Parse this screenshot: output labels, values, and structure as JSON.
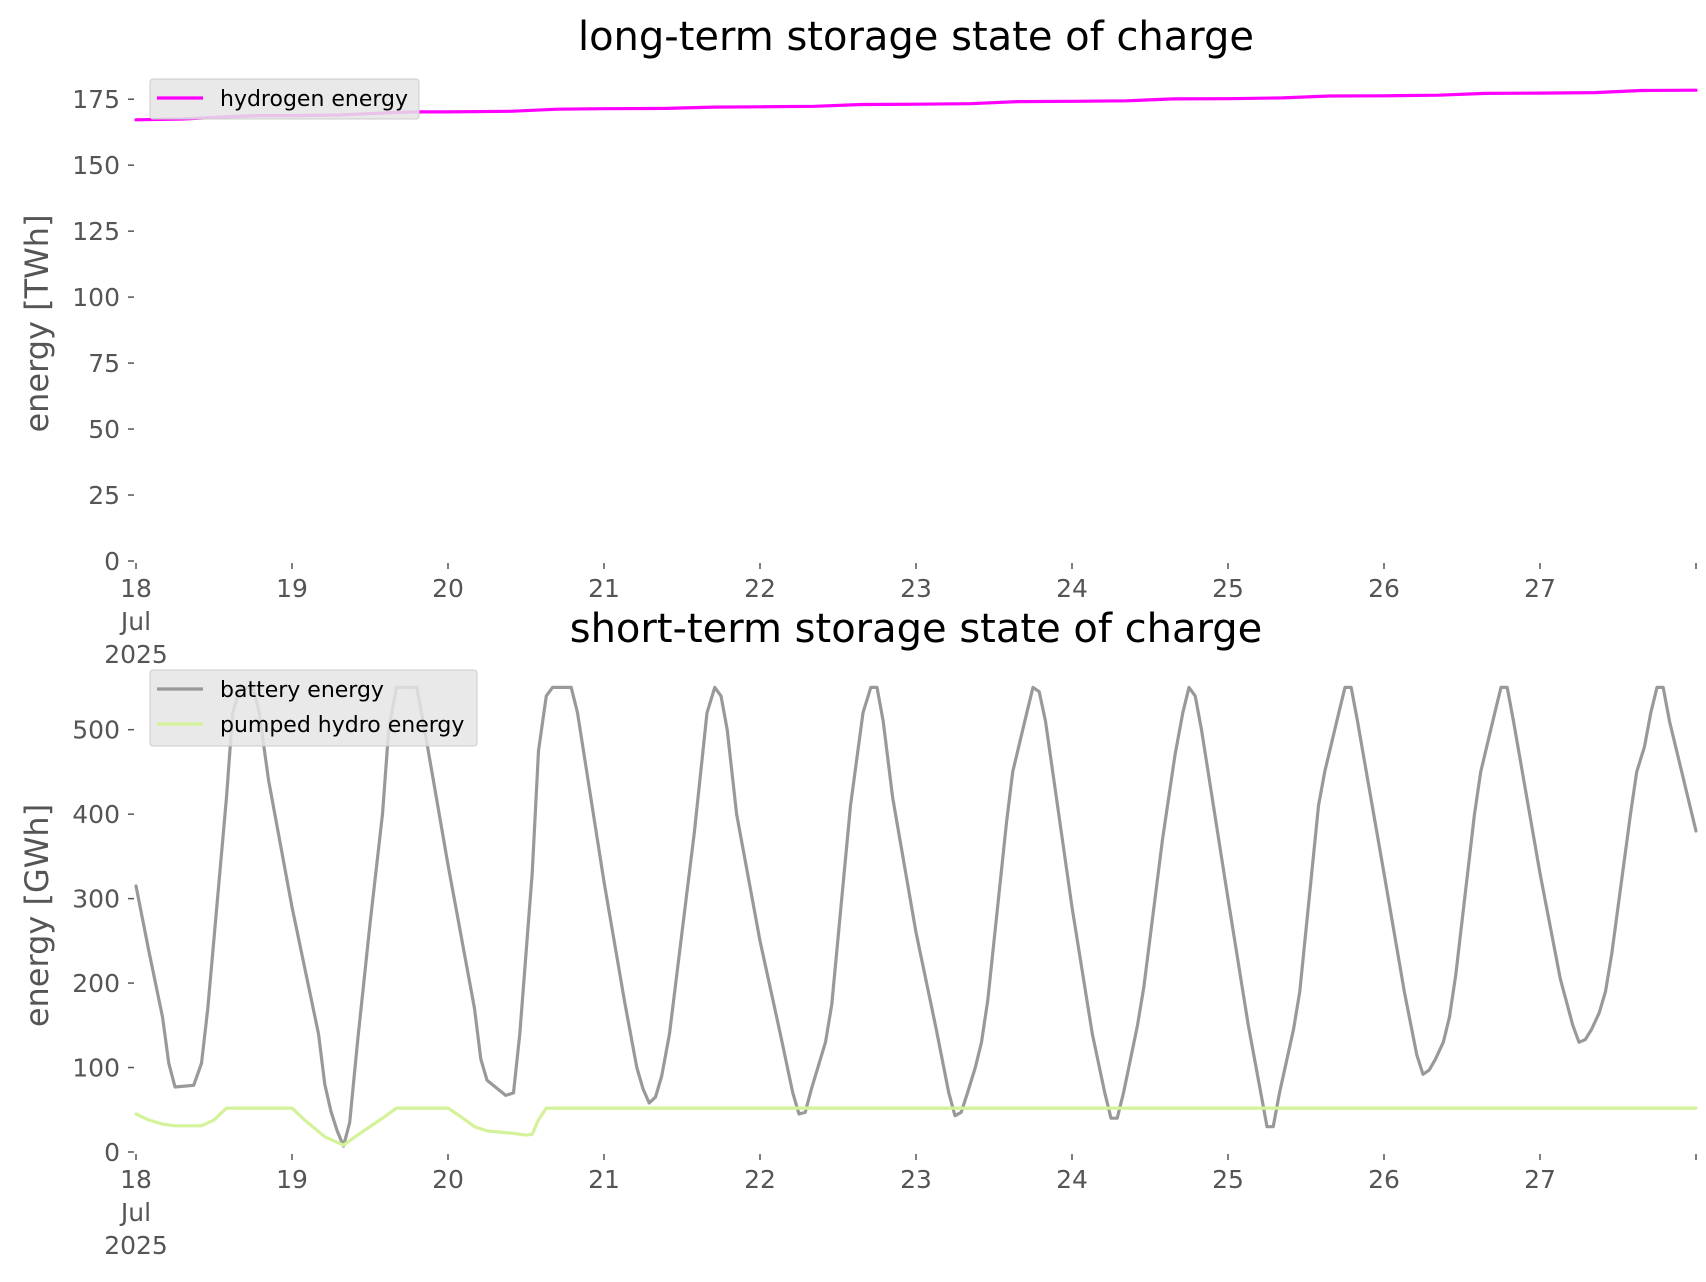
{
  "chart_data": [
    {
      "type": "line",
      "title": "long-term storage state of charge",
      "ylabel": "energy [TWh]",
      "xlabel": "",
      "ylim": [
        0,
        180
      ],
      "yticks": [
        0,
        25,
        50,
        75,
        100,
        125,
        150,
        175
      ],
      "xlim": [
        0,
        10
      ],
      "xticks": [
        {
          "x": 0,
          "lines": [
            "18",
            "Jul",
            "2025"
          ]
        },
        {
          "x": 1,
          "lines": [
            "19"
          ]
        },
        {
          "x": 2,
          "lines": [
            "20"
          ]
        },
        {
          "x": 3,
          "lines": [
            "21"
          ]
        },
        {
          "x": 4,
          "lines": [
            "22"
          ]
        },
        {
          "x": 5,
          "lines": [
            "23"
          ]
        },
        {
          "x": 6,
          "lines": [
            "24"
          ]
        },
        {
          "x": 7,
          "lines": [
            "25"
          ]
        },
        {
          "x": 8,
          "lines": [
            "26"
          ]
        },
        {
          "x": 9,
          "lines": [
            "27"
          ]
        },
        {
          "x": 10,
          "lines": [
            ""
          ]
        }
      ],
      "grid": false,
      "legend": "top-left",
      "series": [
        {
          "name": "hydrogen energy",
          "color": "#ff00ff",
          "points": [
            [
              0,
              167.2
            ],
            [
              0.3,
              167.5
            ],
            [
              0.6,
              168.4
            ],
            [
              0.8,
              168.8
            ],
            [
              1.0,
              168.8
            ],
            [
              1.3,
              169.0
            ],
            [
              1.6,
              169.8
            ],
            [
              1.8,
              170.2
            ],
            [
              2.0,
              170.2
            ],
            [
              2.4,
              170.4
            ],
            [
              2.7,
              171.2
            ],
            [
              3.0,
              171.4
            ],
            [
              3.4,
              171.5
            ],
            [
              3.7,
              172.0
            ],
            [
              4.0,
              172.1
            ],
            [
              4.35,
              172.3
            ],
            [
              4.65,
              173.0
            ],
            [
              5.0,
              173.1
            ],
            [
              5.35,
              173.3
            ],
            [
              5.65,
              174.1
            ],
            [
              6.0,
              174.2
            ],
            [
              6.35,
              174.4
            ],
            [
              6.65,
              175.1
            ],
            [
              7.0,
              175.2
            ],
            [
              7.35,
              175.5
            ],
            [
              7.65,
              176.2
            ],
            [
              8.0,
              176.3
            ],
            [
              8.35,
              176.5
            ],
            [
              8.65,
              177.2
            ],
            [
              9.0,
              177.3
            ],
            [
              9.35,
              177.5
            ],
            [
              9.65,
              178.3
            ],
            [
              10,
              178.4
            ]
          ]
        }
      ]
    },
    {
      "type": "line",
      "title": "short-term storage state of charge",
      "ylabel": "energy [GWh]",
      "xlabel": "",
      "ylim": [
        0,
        560
      ],
      "yticks": [
        0,
        100,
        200,
        300,
        400,
        500
      ],
      "xlim": [
        0,
        10
      ],
      "xticks": [
        {
          "x": 0,
          "lines": [
            "18",
            "Jul",
            "2025"
          ]
        },
        {
          "x": 1,
          "lines": [
            "19"
          ]
        },
        {
          "x": 2,
          "lines": [
            "20"
          ]
        },
        {
          "x": 3,
          "lines": [
            "21"
          ]
        },
        {
          "x": 4,
          "lines": [
            "22"
          ]
        },
        {
          "x": 5,
          "lines": [
            "23"
          ]
        },
        {
          "x": 6,
          "lines": [
            "24"
          ]
        },
        {
          "x": 7,
          "lines": [
            "25"
          ]
        },
        {
          "x": 8,
          "lines": [
            "26"
          ]
        },
        {
          "x": 9,
          "lines": [
            "27"
          ]
        },
        {
          "x": 10,
          "lines": [
            ""
          ]
        }
      ],
      "grid": false,
      "legend": "top-left",
      "series": [
        {
          "name": "battery energy",
          "color": "#999999",
          "points": [
            [
              0,
              315
            ],
            [
              0.08,
              240
            ],
            [
              0.17,
              160
            ],
            [
              0.21,
              105
            ],
            [
              0.25,
              77
            ],
            [
              0.37,
              79
            ],
            [
              0.42,
              105
            ],
            [
              0.46,
              170
            ],
            [
              0.58,
              420
            ],
            [
              0.62,
              520
            ],
            [
              0.67,
              550
            ],
            [
              0.75,
              550
            ],
            [
              0.79,
              520
            ],
            [
              0.85,
              440
            ],
            [
              1.0,
              290
            ],
            [
              1.17,
              140
            ],
            [
              1.21,
              80
            ],
            [
              1.25,
              48
            ],
            [
              1.29,
              25
            ],
            [
              1.33,
              7
            ],
            [
              1.37,
              35
            ],
            [
              1.42,
              130
            ],
            [
              1.5,
              270
            ],
            [
              1.58,
              400
            ],
            [
              1.62,
              500
            ],
            [
              1.67,
              550
            ],
            [
              1.8,
              550
            ],
            [
              1.85,
              500
            ],
            [
              2.0,
              340
            ],
            [
              2.17,
              170
            ],
            [
              2.21,
              110
            ],
            [
              2.25,
              85
            ],
            [
              2.37,
              67
            ],
            [
              2.42,
              70
            ],
            [
              2.46,
              140
            ],
            [
              2.54,
              330
            ],
            [
              2.58,
              475
            ],
            [
              2.63,
              540
            ],
            [
              2.67,
              550
            ],
            [
              2.79,
              550
            ],
            [
              2.83,
              520
            ],
            [
              3.0,
              320
            ],
            [
              3.13,
              180
            ],
            [
              3.21,
              100
            ],
            [
              3.25,
              75
            ],
            [
              3.29,
              58
            ],
            [
              3.33,
              65
            ],
            [
              3.37,
              90
            ],
            [
              3.42,
              140
            ],
            [
              3.58,
              380
            ],
            [
              3.66,
              520
            ],
            [
              3.71,
              550
            ],
            [
              3.75,
              540
            ],
            [
              3.79,
              500
            ],
            [
              3.85,
              400
            ],
            [
              4.0,
              250
            ],
            [
              4.13,
              140
            ],
            [
              4.21,
              70
            ],
            [
              4.25,
              45
            ],
            [
              4.29,
              47
            ],
            [
              4.33,
              75
            ],
            [
              4.42,
              130
            ],
            [
              4.46,
              175
            ],
            [
              4.58,
              410
            ],
            [
              4.66,
              520
            ],
            [
              4.71,
              550
            ],
            [
              4.75,
              550
            ],
            [
              4.79,
              510
            ],
            [
              4.85,
              420
            ],
            [
              5.0,
              260
            ],
            [
              5.13,
              145
            ],
            [
              5.21,
              70
            ],
            [
              5.25,
              43
            ],
            [
              5.29,
              47
            ],
            [
              5.33,
              70
            ],
            [
              5.38,
              100
            ],
            [
              5.42,
              130
            ],
            [
              5.46,
              180
            ],
            [
              5.58,
              390
            ],
            [
              5.62,
              450
            ],
            [
              5.71,
              520
            ],
            [
              5.75,
              550
            ],
            [
              5.79,
              545
            ],
            [
              5.83,
              510
            ],
            [
              6.0,
              290
            ],
            [
              6.13,
              140
            ],
            [
              6.21,
              70
            ],
            [
              6.25,
              40
            ],
            [
              6.29,
              40
            ],
            [
              6.33,
              70
            ],
            [
              6.42,
              150
            ],
            [
              6.46,
              195
            ],
            [
              6.58,
              370
            ],
            [
              6.66,
              470
            ],
            [
              6.71,
              520
            ],
            [
              6.75,
              550
            ],
            [
              6.79,
              540
            ],
            [
              6.83,
              500
            ],
            [
              7.0,
              300
            ],
            [
              7.13,
              150
            ],
            [
              7.21,
              70
            ],
            [
              7.25,
              30
            ],
            [
              7.29,
              30
            ],
            [
              7.33,
              70
            ],
            [
              7.42,
              145
            ],
            [
              7.46,
              190
            ],
            [
              7.58,
              410
            ],
            [
              7.62,
              450
            ],
            [
              7.71,
              520
            ],
            [
              7.75,
              550
            ],
            [
              7.79,
              550
            ],
            [
              7.83,
              510
            ],
            [
              8.0,
              330
            ],
            [
              8.13,
              190
            ],
            [
              8.21,
              115
            ],
            [
              8.25,
              92
            ],
            [
              8.29,
              97
            ],
            [
              8.33,
              110
            ],
            [
              8.38,
              130
            ],
            [
              8.42,
              160
            ],
            [
              8.46,
              210
            ],
            [
              8.58,
              400
            ],
            [
              8.62,
              450
            ],
            [
              8.71,
              520
            ],
            [
              8.75,
              550
            ],
            [
              8.79,
              550
            ],
            [
              8.83,
              510
            ],
            [
              9.0,
              330
            ],
            [
              9.13,
              205
            ],
            [
              9.21,
              150
            ],
            [
              9.25,
              130
            ],
            [
              9.29,
              133
            ],
            [
              9.33,
              145
            ],
            [
              9.38,
              165
            ],
            [
              9.42,
              190
            ],
            [
              9.46,
              235
            ],
            [
              9.58,
              400
            ],
            [
              9.62,
              450
            ],
            [
              9.67,
              480
            ],
            [
              9.71,
              520
            ],
            [
              9.75,
              550
            ],
            [
              9.79,
              550
            ],
            [
              9.83,
              510
            ],
            [
              10,
              380
            ]
          ]
        },
        {
          "name": "pumped hydro energy",
          "color": "#d4f299",
          "points": [
            [
              0,
              45
            ],
            [
              0.08,
              38
            ],
            [
              0.17,
              33
            ],
            [
              0.25,
              31
            ],
            [
              0.42,
              31
            ],
            [
              0.5,
              38
            ],
            [
              0.58,
              52
            ],
            [
              0.67,
              52
            ],
            [
              1.0,
              52
            ],
            [
              1.08,
              38
            ],
            [
              1.21,
              18
            ],
            [
              1.33,
              8
            ],
            [
              1.42,
              20
            ],
            [
              1.58,
              40
            ],
            [
              1.67,
              52
            ],
            [
              2.0,
              52
            ],
            [
              2.08,
              42
            ],
            [
              2.17,
              30
            ],
            [
              2.25,
              25
            ],
            [
              2.42,
              22
            ],
            [
              2.5,
              20
            ],
            [
              2.54,
              21
            ],
            [
              2.58,
              38
            ],
            [
              2.63,
              52
            ],
            [
              10,
              52
            ]
          ]
        }
      ]
    }
  ]
}
